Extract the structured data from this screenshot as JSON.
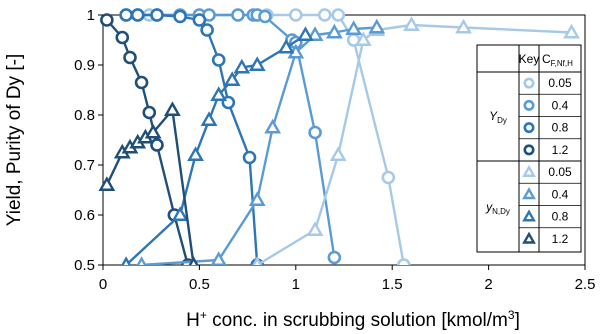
{
  "chart_data": {
    "type": "line",
    "xlabel_main": "H",
    "xlabel_sup1": "+",
    "xlabel_mid": " conc. in scrubbing solution [kmol/m",
    "xlabel_sup2": "3",
    "xlabel_end": "]",
    "ylabel": "Yield, Purity of Dy [-]",
    "xlim": [
      0,
      2.5
    ],
    "ylim": [
      0.5,
      1.0
    ],
    "x_ticks": [
      0,
      0.5,
      1,
      1.5,
      2,
      2.5
    ],
    "x_tick_labels": [
      "0",
      "0.5",
      "1",
      "1.5",
      "2",
      "2.5"
    ],
    "y_ticks": [
      0.5,
      0.6,
      0.7,
      0.8,
      0.9,
      1.0
    ],
    "y_tick_labels": [
      "0.5",
      "0.6",
      "0.7",
      "0.8",
      "0.9",
      "1"
    ],
    "grid": false,
    "legend": {
      "placement": "right",
      "header_key": "Key",
      "header_c_main": "C",
      "header_c_sub": "F,Nf,H",
      "yield_group_main": "Y",
      "yield_group_sub": "Dy",
      "purity_group_main": "y",
      "purity_group_sub": "N,Dy",
      "values": [
        "0.05",
        "0.4",
        "0.8",
        "1.2"
      ]
    },
    "series": [
      {
        "marker": "circle",
        "color": "#a7c9e9",
        "x": [
          0.12,
          0.18,
          0.24,
          0.28,
          0.8,
          0.85,
          1.0,
          1.15,
          1.22,
          1.3,
          1.48,
          1.56
        ],
        "y": [
          1.0,
          1.0,
          1.0,
          1.0,
          1.0,
          1.0,
          1.0,
          1.0,
          1.0,
          0.95,
          0.675,
          0.5
        ]
      },
      {
        "marker": "circle",
        "color": "#5b9bd5",
        "x": [
          0.12,
          0.18,
          0.28,
          0.4,
          0.5,
          0.55,
          0.7,
          0.78,
          0.8,
          0.84,
          0.98,
          1.0,
          1.1,
          1.2
        ],
        "y": [
          1.0,
          1.0,
          1.0,
          1.0,
          1.0,
          1.0,
          1.0,
          1.0,
          1.0,
          0.997,
          0.95,
          0.945,
          0.765,
          0.515
        ]
      },
      {
        "marker": "circle",
        "color": "#2e75b6",
        "x": [
          0.12,
          0.18,
          0.28,
          0.4,
          0.5,
          0.54,
          0.6,
          0.65,
          0.76,
          0.8
        ],
        "y": [
          1.0,
          1.0,
          1.0,
          0.997,
          0.99,
          0.97,
          0.91,
          0.825,
          0.715,
          0.5
        ]
      },
      {
        "marker": "circle",
        "color": "#1f4e79",
        "x": [
          0.02,
          0.1,
          0.14,
          0.2,
          0.24,
          0.28,
          0.37,
          0.44
        ],
        "y": [
          0.99,
          0.955,
          0.915,
          0.865,
          0.805,
          0.74,
          0.6,
          0.5
        ]
      },
      {
        "marker": "triangle",
        "color": "#a7c9e9",
        "x": [
          0.8,
          1.1,
          1.22,
          1.35,
          1.42,
          1.6,
          1.87,
          2.43
        ],
        "y": [
          0.5,
          0.57,
          0.72,
          0.95,
          0.97,
          0.98,
          0.975,
          0.965
        ]
      },
      {
        "marker": "triangle",
        "color": "#5b9bd5",
        "x": [
          0.2,
          0.6,
          0.8,
          0.88,
          1.0,
          1.1,
          1.2,
          1.3,
          1.42
        ],
        "y": [
          0.5,
          0.51,
          0.63,
          0.775,
          0.925,
          0.96,
          0.965,
          0.972,
          0.975
        ]
      },
      {
        "marker": "triangle",
        "color": "#2e75b6",
        "x": [
          0.12,
          0.4,
          0.48,
          0.55,
          0.6,
          0.67,
          0.72,
          0.8,
          0.95,
          1.05
        ],
        "y": [
          0.5,
          0.6,
          0.72,
          0.79,
          0.84,
          0.87,
          0.895,
          0.9,
          0.935,
          0.96
        ]
      },
      {
        "marker": "triangle",
        "color": "#1f4e79",
        "x": [
          0.02,
          0.1,
          0.14,
          0.18,
          0.22,
          0.26,
          0.36,
          0.47
        ],
        "y": [
          0.66,
          0.725,
          0.735,
          0.745,
          0.755,
          0.765,
          0.81,
          0.5
        ]
      }
    ]
  }
}
